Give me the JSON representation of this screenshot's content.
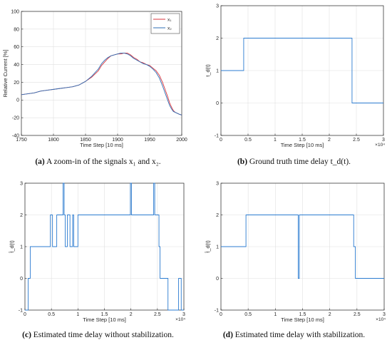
{
  "captions": {
    "a": {
      "letter": "(a)",
      "text": "A zoom-in of the signals x₁ and x₂."
    },
    "b": {
      "letter": "(b)",
      "text": "Ground truth time delay t_d(t)."
    },
    "c": {
      "letter": "(c)",
      "text": "Estimated time delay without stabilization."
    },
    "d": {
      "letter": "(d)",
      "text": "Estimated time delay with stabilization."
    }
  },
  "colors": {
    "x1": "#d9363e",
    "x2": "#2f6fb6",
    "step": "#2b7bd0",
    "axis": "#262626",
    "grid": "#e0e0e0"
  },
  "chart_data": [
    {
      "id": "a",
      "type": "line",
      "xlabel": "Time Step [10 ms]",
      "ylabel": "Relative Current [%]",
      "xlim": [
        1750,
        2000
      ],
      "ylim": [
        -40,
        100
      ],
      "xticks": [
        1750,
        1800,
        1850,
        1900,
        1950,
        2000
      ],
      "yticks": [
        -40,
        -20,
        0,
        20,
        40,
        60,
        80,
        100
      ],
      "grid": true,
      "legend": "top-right",
      "series": [
        {
          "name": "x₁",
          "color": "#d9363e",
          "x": [
            1750,
            1760,
            1770,
            1780,
            1790,
            1800,
            1810,
            1820,
            1830,
            1840,
            1850,
            1860,
            1870,
            1875,
            1880,
            1885,
            1890,
            1895,
            1900,
            1905,
            1910,
            1915,
            1920,
            1925,
            1930,
            1935,
            1940,
            1945,
            1950,
            1955,
            1960,
            1965,
            1970,
            1975,
            1978,
            1981,
            1984,
            1987,
            1990,
            1993,
            1996,
            2000
          ],
          "y": [
            6,
            7,
            8,
            10,
            11,
            12,
            13,
            14,
            15,
            17,
            21,
            26,
            33,
            39,
            43,
            47,
            50,
            51,
            52,
            52,
            53,
            53,
            51,
            48,
            46,
            43,
            42,
            40,
            39,
            36,
            33,
            28,
            20,
            10,
            4,
            -3,
            -8,
            -12,
            -14,
            -15,
            -16,
            -17
          ]
        },
        {
          "name": "x₂",
          "color": "#2f6fb6",
          "x": [
            1750,
            1760,
            1770,
            1780,
            1790,
            1800,
            1810,
            1820,
            1830,
            1840,
            1850,
            1860,
            1870,
            1875,
            1880,
            1885,
            1890,
            1895,
            1900,
            1905,
            1910,
            1915,
            1920,
            1925,
            1930,
            1935,
            1940,
            1945,
            1950,
            1955,
            1960,
            1965,
            1970,
            1975,
            1978,
            1981,
            1984,
            1987,
            1990,
            1993,
            1996,
            2000
          ],
          "y": [
            6,
            7,
            8,
            10,
            11,
            12,
            13,
            14,
            15,
            17,
            21,
            27,
            35,
            41,
            45,
            48,
            50,
            51,
            52,
            53,
            53,
            52,
            50,
            47,
            45,
            43,
            41,
            40,
            38,
            35,
            31,
            25,
            16,
            6,
            0,
            -6,
            -10,
            -13,
            -14,
            -15,
            -16,
            -17
          ]
        }
      ]
    },
    {
      "id": "b",
      "type": "line",
      "xlabel": "Time Step [10 ms]",
      "ylabel": "t_d(t)",
      "xlim": [
        0,
        3
      ],
      "ylim": [
        -1,
        3
      ],
      "xticks": [
        0,
        0.5,
        1,
        1.5,
        2,
        2.5,
        3
      ],
      "yticks": [
        -1,
        0,
        1,
        2,
        3
      ],
      "exponent": "×10⁴",
      "grid": true,
      "series": [
        {
          "name": "",
          "x": [
            0,
            0.42,
            0.42,
            2.42,
            2.42,
            3.0
          ],
          "y": [
            1,
            1,
            2,
            2,
            0,
            0
          ]
        }
      ]
    },
    {
      "id": "c",
      "type": "line",
      "xlabel": "Time Step [10 ms]",
      "ylabel": "t̂_d(t)",
      "xlim": [
        0,
        3
      ],
      "ylim": [
        -1,
        3
      ],
      "xticks": [
        0,
        0.5,
        1,
        1.5,
        2,
        2.5,
        3
      ],
      "yticks": [
        -1,
        0,
        1,
        2,
        3
      ],
      "exponent": "×10⁴",
      "grid": true,
      "series": [
        {
          "name": "",
          "x": [
            0,
            0.06,
            0.06,
            0.1,
            0.1,
            0.13,
            0.13,
            0.48,
            0.48,
            0.52,
            0.52,
            0.6,
            0.6,
            0.72,
            0.72,
            0.74,
            0.74,
            0.76,
            0.76,
            0.8,
            0.8,
            0.85,
            0.85,
            0.9,
            0.9,
            0.92,
            0.92,
            1.0,
            1.0,
            1.02,
            1.02,
            1.1,
            1.1,
            1.99,
            1.99,
            2.01,
            2.01,
            2.43,
            2.43,
            2.45,
            2.45,
            2.47,
            2.47,
            2.53,
            2.53,
            2.55,
            2.55,
            2.62,
            2.62,
            2.7,
            2.7,
            2.9,
            2.9,
            2.95,
            2.95,
            3.0
          ],
          "y": [
            -1,
            -1,
            0,
            0,
            1,
            1,
            1,
            1,
            2,
            2,
            1,
            1,
            2,
            2,
            3,
            3,
            2,
            2,
            1,
            1,
            2,
            2,
            1,
            1,
            2,
            2,
            1,
            1,
            2,
            2,
            2,
            2,
            2,
            2,
            3,
            3,
            2,
            2,
            3,
            3,
            2,
            2,
            2,
            2,
            1,
            1,
            0,
            0,
            0,
            0,
            -1,
            -1,
            0,
            0,
            -1,
            -1
          ]
        }
      ]
    },
    {
      "id": "d",
      "type": "line",
      "xlabel": "Time Step [10 ms]",
      "ylabel": "t̂_d(t)",
      "xlim": [
        0,
        3
      ],
      "ylim": [
        -1,
        3
      ],
      "xticks": [
        0,
        0.5,
        1,
        1.5,
        2,
        2.5,
        3
      ],
      "yticks": [
        -1,
        0,
        1,
        2,
        3
      ],
      "exponent": "×10⁴",
      "grid": true,
      "series": [
        {
          "name": "",
          "x": [
            0,
            0.46,
            0.46,
            1.42,
            1.42,
            1.44,
            1.44,
            2.44,
            2.44,
            2.47,
            2.47,
            3.0
          ],
          "y": [
            1,
            1,
            2,
            2,
            0,
            0,
            2,
            2,
            1,
            1,
            0,
            0
          ]
        }
      ]
    }
  ]
}
